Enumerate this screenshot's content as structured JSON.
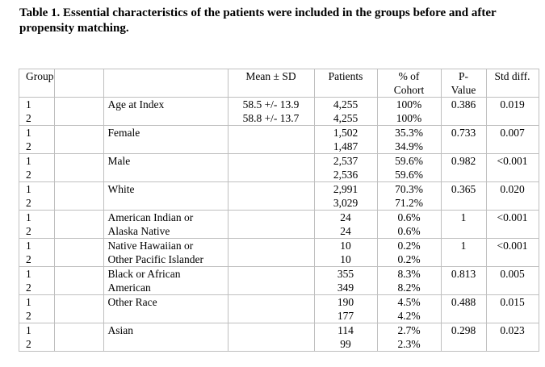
{
  "caption": "Table 1. Essential characteristics of the patients were included in the groups before and after propensity matching.",
  "headers": {
    "group": "Group",
    "mean": "Mean ± SD",
    "patients": "Patients",
    "pct_1": "% of",
    "pct_2": "Cohort",
    "pvalue_1": "P-",
    "pvalue_2": "Value",
    "stddiff": "Std diff."
  },
  "rows": [
    {
      "g1": "1",
      "g2": "2",
      "char_1": "Age at Index",
      "char_2": "",
      "mean_1": "58.5 +/- 13.9",
      "mean_2": "58.8 +/- 13.7",
      "pat_1": "4,255",
      "pat_2": "4,255",
      "pct_1": "100%",
      "pct_2": "100%",
      "pvalue": "0.386",
      "stddiff": "0.019"
    },
    {
      "g1": "1",
      "g2": "2",
      "char_1": "Female",
      "char_2": "",
      "mean_1": "",
      "mean_2": "",
      "pat_1": "1,502",
      "pat_2": "1,487",
      "pct_1": "35.3%",
      "pct_2": "34.9%",
      "pvalue": "0.733",
      "stddiff": "0.007"
    },
    {
      "g1": "1",
      "g2": "2",
      "char_1": "Male",
      "char_2": "",
      "mean_1": "",
      "mean_2": "",
      "pat_1": "2,537",
      "pat_2": "2,536",
      "pct_1": "59.6%",
      "pct_2": "59.6%",
      "pvalue": "0.982",
      "stddiff": "<0.001"
    },
    {
      "g1": "1",
      "g2": "2",
      "char_1": "White",
      "char_2": "",
      "mean_1": "",
      "mean_2": "",
      "pat_1": "2,991",
      "pat_2": "3,029",
      "pct_1": "70.3%",
      "pct_2": "71.2%",
      "pvalue": "0.365",
      "stddiff": "0.020"
    },
    {
      "g1": "1",
      "g2": "2",
      "char_1": "American Indian or",
      "char_2": "Alaska Native",
      "mean_1": "",
      "mean_2": "",
      "pat_1": "24",
      "pat_2": "24",
      "pct_1": "0.6%",
      "pct_2": "0.6%",
      "pvalue": "1",
      "stddiff": "<0.001"
    },
    {
      "g1": "1",
      "g2": "2",
      "char_1": "Native Hawaiian or",
      "char_2": "Other Pacific Islander",
      "mean_1": "",
      "mean_2": "",
      "pat_1": "10",
      "pat_2": "10",
      "pct_1": "0.2%",
      "pct_2": "0.2%",
      "pvalue": "1",
      "stddiff": "<0.001"
    },
    {
      "g1": "1",
      "g2": "2",
      "char_1": "Black or African",
      "char_2": "American",
      "mean_1": "",
      "mean_2": "",
      "pat_1": "355",
      "pat_2": "349",
      "pct_1": "8.3%",
      "pct_2": "8.2%",
      "pvalue": "0.813",
      "stddiff": "0.005"
    },
    {
      "g1": "1",
      "g2": "2",
      "char_1": "Other Race",
      "char_2": "",
      "mean_1": "",
      "mean_2": "",
      "pat_1": "190",
      "pat_2": "177",
      "pct_1": "4.5%",
      "pct_2": "4.2%",
      "pvalue": "0.488",
      "stddiff": "0.015"
    },
    {
      "g1": "1",
      "g2": "2",
      "char_1": "Asian",
      "char_2": "",
      "mean_1": "",
      "mean_2": "",
      "pat_1": "114",
      "pat_2": "99",
      "pct_1": "2.7%",
      "pct_2": "2.3%",
      "pvalue": "0.298",
      "stddiff": "0.023"
    }
  ]
}
